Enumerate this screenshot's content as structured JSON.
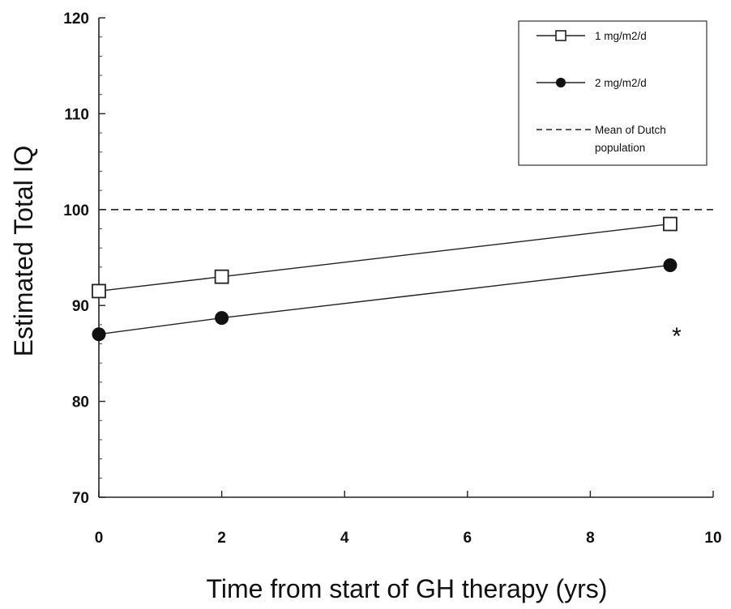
{
  "chart_data": {
    "type": "line",
    "title": "",
    "xlabel": "Time from start of GH therapy (yrs)",
    "ylabel": "Estimated Total IQ",
    "xlim": [
      0,
      10
    ],
    "ylim": [
      70,
      120
    ],
    "xticks": [
      0,
      2,
      4,
      6,
      8,
      10
    ],
    "yticks": [
      70,
      80,
      90,
      100,
      110,
      120
    ],
    "grid": false,
    "legend_position": "top-right",
    "series": [
      {
        "name": "1 mg/m2/d",
        "marker": "open-square",
        "x": [
          0,
          2,
          9.3
        ],
        "y": [
          91.5,
          93,
          98.5
        ]
      },
      {
        "name": "2 mg/m2/d",
        "marker": "filled-circle",
        "x": [
          0,
          2,
          9.3
        ],
        "y": [
          87,
          88.7,
          94.2
        ]
      }
    ],
    "reference_lines": [
      {
        "name_lines": [
          "Mean of Dutch",
          "population"
        ],
        "y": 100,
        "style": "dashed"
      }
    ],
    "annotations": [
      {
        "text": "*",
        "x": 9.3,
        "y": 88
      }
    ]
  }
}
